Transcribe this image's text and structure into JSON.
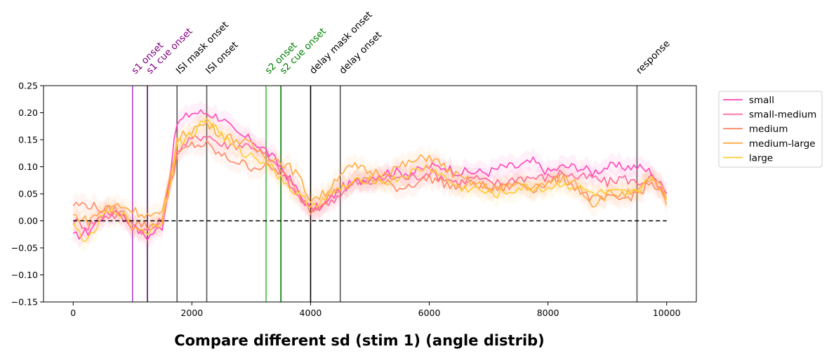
{
  "chart_data": {
    "type": "line",
    "title": "Compare different sd (stim 1) (angle distrib)",
    "xlabel": "",
    "ylabel": "",
    "xlim": [
      -500,
      10500
    ],
    "ylim": [
      -0.15,
      0.25
    ],
    "xticks": [
      0,
      2000,
      4000,
      6000,
      8000,
      10000
    ],
    "yticks": [
      -0.15,
      -0.1,
      -0.05,
      0.0,
      0.05,
      0.1,
      0.15,
      0.2,
      0.25
    ],
    "xtick_labels": [
      "0",
      "2000",
      "4000",
      "6000",
      "8000",
      "10000"
    ],
    "ytick_labels": [
      "−0.15",
      "−0.10",
      "−0.05",
      "0.00",
      "0.05",
      "0.10",
      "0.15",
      "0.20",
      "0.25"
    ],
    "grid": false,
    "legend_position": "outside-right",
    "baseline": {
      "y": 0,
      "x_range": [
        0,
        10000
      ],
      "style": "dashed",
      "color": "#000000"
    },
    "events": [
      {
        "label": "s1 onset",
        "x": 1000,
        "color": "#aa44cc",
        "text_color": "#800080"
      },
      {
        "label": "s1 cue onset",
        "x": 1250,
        "color": "#660066",
        "text_color": "#800080"
      },
      {
        "label": "ISI mask onset",
        "x": 1750,
        "color": "#555555",
        "text_color": "#000000"
      },
      {
        "label": "ISI onset",
        "x": 2250,
        "color": "#555555",
        "text_color": "#000000"
      },
      {
        "label": "s2 onset",
        "x": 3250,
        "color": "#44bb44",
        "text_color": "#008000"
      },
      {
        "label": "s2 cue onset",
        "x": 3500,
        "color": "#007700",
        "text_color": "#008000"
      },
      {
        "label": "delay mask onset",
        "x": 4000,
        "color": "#000000",
        "text_color": "#000000"
      },
      {
        "label": "delay onset",
        "x": 4500,
        "color": "#555555",
        "text_color": "#000000"
      },
      {
        "label": "response",
        "x": 9500,
        "color": "#555555",
        "text_color": "#000000"
      }
    ],
    "x": [
      0,
      250,
      500,
      750,
      1000,
      1250,
      1500,
      1750,
      2000,
      2250,
      2500,
      2750,
      3000,
      3250,
      3500,
      3750,
      4000,
      4250,
      4500,
      4750,
      5000,
      5250,
      5500,
      5750,
      6000,
      6250,
      6500,
      6750,
      7000,
      7250,
      7500,
      7750,
      8000,
      8250,
      8500,
      8750,
      9000,
      9250,
      9500,
      9750,
      10000
    ],
    "series": [
      {
        "name": "small",
        "color": "#ff44bb",
        "values": [
          -0.03,
          -0.02,
          0.01,
          0.02,
          -0.01,
          -0.03,
          -0.01,
          0.18,
          0.2,
          0.2,
          0.19,
          0.16,
          0.15,
          0.13,
          0.1,
          0.06,
          0.02,
          0.03,
          0.06,
          0.07,
          0.08,
          0.09,
          0.09,
          0.09,
          0.1,
          0.1,
          0.09,
          0.09,
          0.09,
          0.1,
          0.1,
          0.11,
          0.09,
          0.1,
          0.1,
          0.09,
          0.1,
          0.1,
          0.1,
          0.09,
          0.05
        ]
      },
      {
        "name": "small-medium",
        "color": "#ff6699",
        "values": [
          0.0,
          -0.01,
          0.01,
          0.01,
          -0.01,
          -0.02,
          0.0,
          0.13,
          0.15,
          0.16,
          0.14,
          0.14,
          0.14,
          0.12,
          0.09,
          0.05,
          0.02,
          0.03,
          0.05,
          0.07,
          0.07,
          0.08,
          0.08,
          0.08,
          0.09,
          0.08,
          0.07,
          0.08,
          0.07,
          0.07,
          0.08,
          0.08,
          0.08,
          0.09,
          0.08,
          0.08,
          0.07,
          0.08,
          0.07,
          0.08,
          0.04
        ]
      },
      {
        "name": "medium",
        "color": "#ff8866",
        "values": [
          0.03,
          0.03,
          0.02,
          0.02,
          0.0,
          -0.01,
          0.0,
          0.12,
          0.14,
          0.14,
          0.12,
          0.11,
          0.1,
          0.1,
          0.09,
          0.06,
          0.02,
          0.04,
          0.06,
          0.07,
          0.08,
          0.07,
          0.06,
          0.07,
          0.08,
          0.07,
          0.06,
          0.07,
          0.06,
          0.06,
          0.07,
          0.06,
          0.07,
          0.08,
          0.06,
          0.04,
          0.04,
          0.04,
          0.05,
          0.07,
          0.04
        ]
      },
      {
        "name": "medium-large",
        "color": "#ffaa44",
        "values": [
          0.01,
          0.0,
          0.02,
          0.03,
          0.02,
          0.01,
          0.01,
          0.15,
          0.17,
          0.18,
          0.16,
          0.15,
          0.14,
          0.12,
          0.11,
          0.09,
          0.04,
          0.05,
          0.09,
          0.1,
          0.09,
          0.09,
          0.1,
          0.11,
          0.12,
          0.1,
          0.08,
          0.07,
          0.06,
          0.06,
          0.07,
          0.06,
          0.07,
          0.08,
          0.07,
          0.03,
          0.05,
          0.05,
          0.05,
          0.08,
          0.03
        ]
      },
      {
        "name": "large",
        "color": "#ffcc33",
        "values": [
          -0.01,
          -0.04,
          0.01,
          0.02,
          -0.01,
          -0.02,
          0.0,
          0.14,
          0.16,
          0.19,
          0.16,
          0.13,
          0.12,
          0.11,
          0.08,
          0.05,
          0.03,
          0.04,
          0.06,
          0.07,
          0.08,
          0.07,
          0.08,
          0.09,
          0.1,
          0.08,
          0.06,
          0.06,
          0.05,
          0.05,
          0.06,
          0.06,
          0.06,
          0.07,
          0.06,
          0.05,
          0.05,
          0.05,
          0.05,
          0.09,
          0.04
        ]
      }
    ]
  }
}
